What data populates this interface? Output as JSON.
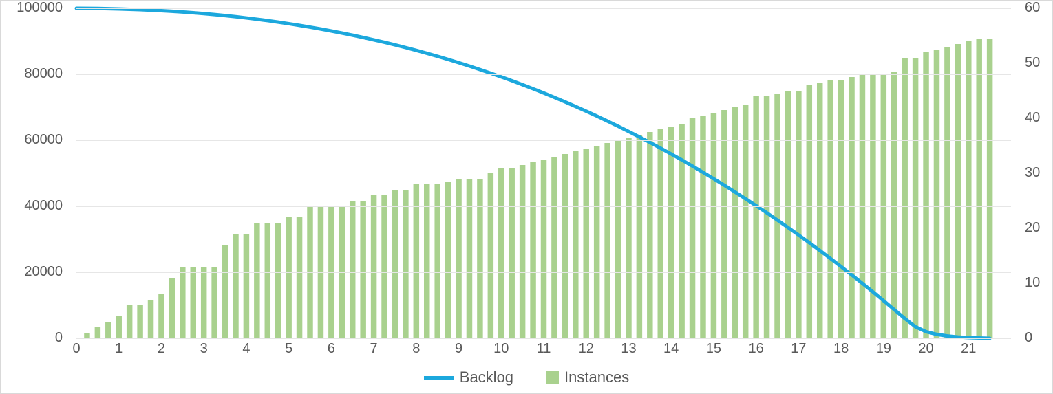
{
  "chart": {
    "type": "combo-bar-line-dual-axis",
    "background_color": "#ffffff",
    "border_color": "#d9d9d9",
    "grid_color": "#e6e6e6",
    "axis_label_color": "#595959",
    "axis_font_size": 20,
    "legend_font_size": 22,
    "left_axis": {
      "min": 0,
      "max": 100000,
      "ticks": [
        0,
        20000,
        40000,
        60000,
        80000,
        100000
      ]
    },
    "right_axis": {
      "min": 0,
      "max": 60,
      "ticks": [
        0,
        10,
        20,
        30,
        40,
        50,
        60
      ]
    },
    "x_axis": {
      "min": 0,
      "max": 22,
      "ticks": [
        0,
        1,
        2,
        3,
        4,
        5,
        6,
        7,
        8,
        9,
        10,
        11,
        12,
        13,
        14,
        15,
        16,
        17,
        18,
        19,
        20,
        21
      ]
    },
    "series": {
      "backlog": {
        "label": "Backlog",
        "type": "line",
        "axis": "left",
        "color": "#1ca8dd",
        "line_width": 5,
        "data": [
          [
            0.0,
            100000
          ],
          [
            0.25,
            99980
          ],
          [
            0.5,
            99940
          ],
          [
            0.75,
            99880
          ],
          [
            1.0,
            99800
          ],
          [
            1.25,
            99700
          ],
          [
            1.5,
            99580
          ],
          [
            1.75,
            99440
          ],
          [
            2.0,
            99280
          ],
          [
            2.25,
            99090
          ],
          [
            2.5,
            98880
          ],
          [
            2.75,
            98640
          ],
          [
            3.0,
            98380
          ],
          [
            3.25,
            98090
          ],
          [
            3.5,
            97780
          ],
          [
            3.75,
            97440
          ],
          [
            4.0,
            97070
          ],
          [
            4.25,
            96680
          ],
          [
            4.5,
            96260
          ],
          [
            4.75,
            95810
          ],
          [
            5.0,
            95330
          ],
          [
            5.25,
            94820
          ],
          [
            5.5,
            94290
          ],
          [
            5.75,
            93720
          ],
          [
            6.0,
            93130
          ],
          [
            6.25,
            92500
          ],
          [
            6.5,
            91850
          ],
          [
            6.75,
            91160
          ],
          [
            7.0,
            90440
          ],
          [
            7.25,
            89690
          ],
          [
            7.5,
            88910
          ],
          [
            7.75,
            88100
          ],
          [
            8.0,
            87250
          ],
          [
            8.25,
            86370
          ],
          [
            8.5,
            85450
          ],
          [
            8.75,
            84500
          ],
          [
            9.0,
            83520
          ],
          [
            9.25,
            82500
          ],
          [
            9.5,
            81440
          ],
          [
            9.75,
            80350
          ],
          [
            10.0,
            79220
          ],
          [
            10.25,
            78060
          ],
          [
            10.5,
            76850
          ],
          [
            10.75,
            75610
          ],
          [
            11.0,
            74330
          ],
          [
            11.25,
            73010
          ],
          [
            11.5,
            71650
          ],
          [
            11.75,
            70250
          ],
          [
            12.0,
            68820
          ],
          [
            12.25,
            67340
          ],
          [
            12.5,
            65820
          ],
          [
            12.75,
            64260
          ],
          [
            13.0,
            62660
          ],
          [
            13.25,
            61020
          ],
          [
            13.5,
            59340
          ],
          [
            13.75,
            57610
          ],
          [
            14.0,
            55850
          ],
          [
            14.25,
            54040
          ],
          [
            14.5,
            52190
          ],
          [
            14.75,
            50290
          ],
          [
            15.0,
            48350
          ],
          [
            15.25,
            46380
          ],
          [
            15.5,
            44350
          ],
          [
            15.75,
            42290
          ],
          [
            16.0,
            40180
          ],
          [
            16.25,
            38030
          ],
          [
            16.5,
            35830
          ],
          [
            16.75,
            33590
          ],
          [
            17.0,
            31300
          ],
          [
            17.25,
            28970
          ],
          [
            17.5,
            26600
          ],
          [
            17.75,
            24180
          ],
          [
            18.0,
            21710
          ],
          [
            18.25,
            19210
          ],
          [
            18.5,
            16650
          ],
          [
            18.75,
            14050
          ],
          [
            19.0,
            11400
          ],
          [
            19.25,
            8700
          ],
          [
            19.5,
            6000
          ],
          [
            19.75,
            3500
          ],
          [
            20.0,
            2000
          ],
          [
            20.25,
            1200
          ],
          [
            20.5,
            700
          ],
          [
            20.75,
            400
          ],
          [
            21.0,
            200
          ],
          [
            21.25,
            100
          ],
          [
            21.5,
            0
          ]
        ]
      },
      "instances": {
        "label": "Instances",
        "type": "bar",
        "axis": "right",
        "color": "#a9d18e",
        "bar_width_ratio": 0.55,
        "data": [
          [
            0.25,
            1.0
          ],
          [
            0.5,
            2.0
          ],
          [
            0.75,
            3.0
          ],
          [
            1.0,
            4.0
          ],
          [
            1.25,
            6.0
          ],
          [
            1.5,
            6.0
          ],
          [
            1.75,
            7.0
          ],
          [
            2.0,
            8.0
          ],
          [
            2.25,
            11.0
          ],
          [
            2.5,
            13.0
          ],
          [
            2.75,
            13.0
          ],
          [
            3.0,
            13.0
          ],
          [
            3.25,
            13.0
          ],
          [
            3.5,
            17.0
          ],
          [
            3.75,
            19.0
          ],
          [
            4.0,
            19.0
          ],
          [
            4.25,
            21.0
          ],
          [
            4.5,
            21.0
          ],
          [
            4.75,
            21.0
          ],
          [
            5.0,
            22.0
          ],
          [
            5.25,
            22.0
          ],
          [
            5.5,
            24.0
          ],
          [
            5.75,
            24.0
          ],
          [
            6.0,
            24.0
          ],
          [
            6.25,
            24.0
          ],
          [
            6.5,
            25.0
          ],
          [
            6.75,
            25.0
          ],
          [
            7.0,
            26.0
          ],
          [
            7.25,
            26.0
          ],
          [
            7.5,
            27.0
          ],
          [
            7.75,
            27.0
          ],
          [
            8.0,
            28.0
          ],
          [
            8.25,
            28.0
          ],
          [
            8.5,
            28.0
          ],
          [
            8.75,
            28.5
          ],
          [
            9.0,
            29.0
          ],
          [
            9.25,
            29.0
          ],
          [
            9.5,
            29.0
          ],
          [
            9.75,
            30.0
          ],
          [
            10.0,
            31.0
          ],
          [
            10.25,
            31.0
          ],
          [
            10.5,
            31.5
          ],
          [
            10.75,
            32.0
          ],
          [
            11.0,
            32.5
          ],
          [
            11.25,
            33.0
          ],
          [
            11.5,
            33.5
          ],
          [
            11.75,
            34.0
          ],
          [
            12.0,
            34.5
          ],
          [
            12.25,
            35.0
          ],
          [
            12.5,
            35.5
          ],
          [
            12.75,
            36.0
          ],
          [
            13.0,
            36.5
          ],
          [
            13.25,
            37.0
          ],
          [
            13.5,
            37.5
          ],
          [
            13.75,
            38.0
          ],
          [
            14.0,
            38.5
          ],
          [
            14.25,
            39.0
          ],
          [
            14.5,
            40.0
          ],
          [
            14.75,
            40.5
          ],
          [
            15.0,
            41.0
          ],
          [
            15.25,
            41.5
          ],
          [
            15.5,
            42.0
          ],
          [
            15.75,
            42.5
          ],
          [
            16.0,
            44.0
          ],
          [
            16.25,
            44.0
          ],
          [
            16.5,
            44.5
          ],
          [
            16.75,
            45.0
          ],
          [
            17.0,
            45.0
          ],
          [
            17.25,
            46.0
          ],
          [
            17.5,
            46.5
          ],
          [
            17.75,
            47.0
          ],
          [
            18.0,
            47.0
          ],
          [
            18.25,
            47.5
          ],
          [
            18.5,
            48.0
          ],
          [
            18.75,
            48.0
          ],
          [
            19.0,
            48.0
          ],
          [
            19.25,
            48.5
          ],
          [
            19.5,
            51.0
          ],
          [
            19.75,
            51.0
          ],
          [
            20.0,
            52.0
          ],
          [
            20.25,
            52.5
          ],
          [
            20.5,
            53.0
          ],
          [
            20.75,
            53.5
          ],
          [
            21.0,
            54.0
          ],
          [
            21.25,
            54.5
          ],
          [
            21.5,
            54.5
          ]
        ]
      }
    }
  }
}
